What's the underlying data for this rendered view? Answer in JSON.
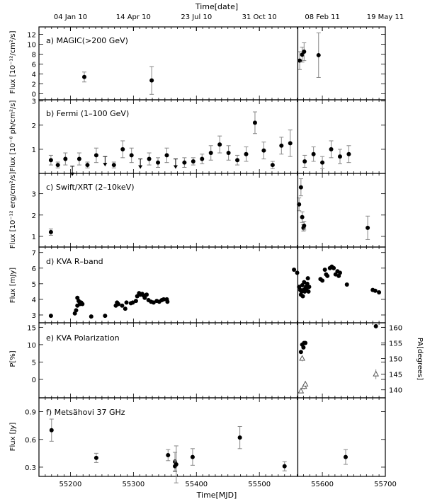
{
  "chart_data": {
    "type": "scatter",
    "x_axis_bottom": {
      "label": "Time[MJD]",
      "range": [
        55150,
        55700
      ],
      "ticks": [
        55200,
        55300,
        55400,
        55500,
        55600,
        55700
      ]
    },
    "x_axis_top": {
      "label": "Time[date]",
      "ticks": [
        {
          "mjd": 55200,
          "label": "04 Jan 10"
        },
        {
          "mjd": 55300,
          "label": "14 Apr 10"
        },
        {
          "mjd": 55400,
          "label": "23 Jul 10"
        },
        {
          "mjd": 55500,
          "label": "31 Oct 10"
        },
        {
          "mjd": 55600,
          "label": "08 Feb 11"
        },
        {
          "mjd": 55700,
          "label": "19 May 11"
        }
      ]
    },
    "vertical_line_mjd": 55561,
    "panels": [
      {
        "title": "a) MAGIC(>200 GeV)",
        "ylabel": "Flux [10⁻¹²/cm²/s]",
        "ylim": [
          -1.2,
          13.5
        ],
        "yticks": [
          "0",
          "2",
          "4",
          "6",
          "8",
          "10",
          "12"
        ],
        "ytick_values": [
          0,
          2,
          4,
          6,
          8,
          10,
          12
        ],
        "points": [
          [
            55222,
            3.4,
            1.0
          ],
          [
            55329,
            2.7,
            2.8
          ],
          [
            55564,
            6.7,
            1.8
          ],
          [
            55568,
            7.9,
            1.5
          ],
          [
            55571,
            8.5,
            1.8
          ],
          [
            55594,
            7.8,
            4.5
          ]
        ],
        "upper_limits": []
      },
      {
        "title": "b) Fermi (1–100 GeV)",
        "ylabel": "Flux [10⁻⁸ ph/cm²/s]",
        "ylim": [
          0.0,
          3.05
        ],
        "yticks": [
          "1",
          "2",
          "3"
        ],
        "ytick_values": [
          1,
          2,
          3
        ],
        "points": [
          [
            55169,
            0.55,
            0.2
          ],
          [
            55180,
            0.35,
            0.12
          ],
          [
            55192,
            0.6,
            0.25
          ],
          [
            55214,
            0.6,
            0.25
          ],
          [
            55227,
            0.35,
            0.12
          ],
          [
            55241,
            0.75,
            0.3
          ],
          [
            55269,
            0.35,
            0.12
          ],
          [
            55283,
            1.0,
            0.35
          ],
          [
            55297,
            0.75,
            0.3
          ],
          [
            55325,
            0.6,
            0.25
          ],
          [
            55339,
            0.45,
            0.2
          ],
          [
            55353,
            0.75,
            0.3
          ],
          [
            55381,
            0.45,
            0.2
          ],
          [
            55395,
            0.5,
            0.15
          ],
          [
            55409,
            0.6,
            0.2
          ],
          [
            55423,
            0.85,
            0.3
          ],
          [
            55437,
            1.2,
            0.35
          ],
          [
            55451,
            0.85,
            0.3
          ],
          [
            55465,
            0.55,
            0.2
          ],
          [
            55479,
            0.8,
            0.3
          ],
          [
            55493,
            2.1,
            0.45
          ],
          [
            55507,
            0.95,
            0.35
          ],
          [
            55521,
            0.35,
            0.15
          ],
          [
            55535,
            1.15,
            0.35
          ],
          [
            55549,
            1.25,
            0.55
          ],
          [
            55572,
            0.5,
            0.25
          ],
          [
            55586,
            0.8,
            0.3
          ],
          [
            55600,
            0.45,
            0.25
          ],
          [
            55614,
            1.0,
            0.35
          ],
          [
            55628,
            0.7,
            0.3
          ],
          [
            55642,
            0.8,
            0.35
          ]
        ],
        "upper_limits": [
          [
            55203,
            0.3
          ],
          [
            55255,
            0.7
          ],
          [
            55311,
            0.6
          ],
          [
            55367,
            0.6
          ]
        ]
      },
      {
        "title": "c) Swift/XRT (2–10keV)",
        "ylabel": "Flux [10⁻¹² erg/cm²/s]",
        "ylim": [
          0.5,
          3.95
        ],
        "yticks": [
          "1",
          "2",
          "3"
        ],
        "ytick_values": [
          1,
          2,
          3
        ],
        "points": [
          [
            55169,
            1.2,
            0.15
          ],
          [
            55563,
            2.5,
            0.3
          ],
          [
            55566,
            3.3,
            0.4
          ],
          [
            55568,
            1.9,
            0.25
          ],
          [
            55570,
            1.4,
            0.15
          ],
          [
            55571,
            1.5,
            0.2
          ],
          [
            55672,
            1.4,
            0.55
          ]
        ],
        "upper_limits": []
      },
      {
        "title": "d) KVA R–band",
        "ylabel": "Flux [mJy]",
        "ylim": [
          2.5,
          7.35
        ],
        "yticks": [
          "3",
          "4",
          "5",
          "6",
          "7"
        ],
        "ytick_values": [
          3,
          4,
          5,
          6,
          7
        ],
        "points": [
          [
            55169,
            2.95,
            0
          ],
          [
            55207,
            3.1,
            0
          ],
          [
            55209,
            3.3,
            0
          ],
          [
            55211,
            3.6,
            0
          ],
          [
            55213,
            3.9,
            0
          ],
          [
            55215,
            3.7,
            0
          ],
          [
            55217,
            3.8,
            0
          ],
          [
            55219,
            3.7,
            0
          ],
          [
            55211,
            4.1,
            0
          ],
          [
            55233,
            2.9,
            0
          ],
          [
            55255,
            2.95,
            0
          ],
          [
            55272,
            3.6,
            0
          ],
          [
            55274,
            3.8,
            0
          ],
          [
            55276,
            3.7,
            0
          ],
          [
            55282,
            3.6,
            0
          ],
          [
            55287,
            3.4,
            0
          ],
          [
            55289,
            3.8,
            0
          ],
          [
            55296,
            3.75,
            0
          ],
          [
            55299,
            3.8,
            0
          ],
          [
            55304,
            3.9,
            0
          ],
          [
            55306,
            4.2,
            0
          ],
          [
            55309,
            4.4,
            0
          ],
          [
            55311,
            4.3,
            0
          ],
          [
            55314,
            4.35,
            0
          ],
          [
            55316,
            4.25,
            0
          ],
          [
            55318,
            4.1,
            0
          ],
          [
            55321,
            4.3,
            0
          ],
          [
            55324,
            3.95,
            0
          ],
          [
            55328,
            3.85,
            0
          ],
          [
            55332,
            3.8,
            0
          ],
          [
            55337,
            3.9,
            0
          ],
          [
            55341,
            3.85,
            0
          ],
          [
            55345,
            3.95,
            0
          ],
          [
            55348,
            4.0,
            0
          ],
          [
            55353,
            4.0,
            0
          ],
          [
            55354,
            3.85,
            0
          ],
          [
            55555,
            5.9,
            0
          ],
          [
            55560,
            5.7,
            0
          ],
          [
            55563,
            4.8,
            0
          ],
          [
            55565,
            4.6,
            0
          ],
          [
            55566,
            4.3,
            0
          ],
          [
            55567,
            4.5,
            0
          ],
          [
            55568,
            4.9,
            0
          ],
          [
            55569,
            4.2,
            0
          ],
          [
            55570,
            4.6,
            0
          ],
          [
            55571,
            5.1,
            0
          ],
          [
            55572,
            4.5,
            0
          ],
          [
            55573,
            4.7,
            0
          ],
          [
            55574,
            4.8,
            0
          ],
          [
            55575,
            4.6,
            0
          ],
          [
            55576,
            5.0,
            0
          ],
          [
            55577,
            5.35,
            0
          ],
          [
            55578,
            4.5,
            0
          ],
          [
            55579,
            4.8,
            0
          ],
          [
            55597,
            5.3,
            0
          ],
          [
            55600,
            5.2,
            0
          ],
          [
            55604,
            5.9,
            0
          ],
          [
            55606,
            5.6,
            0
          ],
          [
            55608,
            5.5,
            0
          ],
          [
            55612,
            6.0,
            0
          ],
          [
            55615,
            6.1,
            0
          ],
          [
            55618,
            6.0,
            0
          ],
          [
            55621,
            5.6,
            0
          ],
          [
            55624,
            5.8,
            0
          ],
          [
            55626,
            5.5,
            0
          ],
          [
            55628,
            5.7,
            0
          ],
          [
            55639,
            4.95,
            0
          ],
          [
            55680,
            4.6,
            0
          ],
          [
            55684,
            4.55,
            0
          ],
          [
            55690,
            4.45,
            0
          ]
        ],
        "upper_limits": []
      },
      {
        "title": "e) KVA Polarization",
        "ylabel": "P[%]",
        "ylabel_right": "PA[degrees]",
        "ylim": [
          -5.3,
          16.3
        ],
        "yticks": [
          "0",
          "5",
          "10",
          "15"
        ],
        "ytick_values": [
          0,
          5,
          10,
          15
        ],
        "right_ticks": [
          "140",
          "145",
          "150",
          "155",
          "160"
        ],
        "right_tick_positions_P": [
          -3.0,
          1.5,
          6.0,
          10.5,
          15.0
        ],
        "points": [
          [
            55566,
            7.9,
            0
          ],
          [
            55568,
            10.0,
            0
          ],
          [
            55570,
            9.2,
            0
          ],
          [
            55571,
            10.5,
            0
          ],
          [
            55573,
            10.5,
            0
          ],
          [
            55685,
            15.3,
            0
          ]
        ],
        "triangles": [
          [
            55566,
            -3.4,
            0.4
          ],
          [
            55568,
            6.0,
            0.8
          ],
          [
            55571,
            -2.1,
            0.8
          ],
          [
            55573,
            -1.4,
            0.8
          ],
          [
            55685,
            1.5,
            1.4
          ]
        ],
        "upper_limits": []
      },
      {
        "title": "f) Metsähovi 37 GHz",
        "ylabel": "Flux [Jy]",
        "ylim": [
          0.2,
          1.05
        ],
        "yticks": [
          "0.3",
          "0.6",
          "0.9"
        ],
        "ytick_values": [
          0.3,
          0.6,
          0.9
        ],
        "points": [
          [
            55170,
            0.7,
            0.12
          ],
          [
            55241,
            0.4,
            0.05
          ],
          [
            55355,
            0.43,
            0.06
          ],
          [
            55366,
            0.36,
            0.1
          ],
          [
            55366,
            0.31,
            0.06
          ],
          [
            55368,
            0.33,
            0.2
          ],
          [
            55394,
            0.41,
            0.09
          ],
          [
            55469,
            0.62,
            0.12
          ],
          [
            55540,
            0.31,
            0.05
          ],
          [
            55637,
            0.41,
            0.08
          ]
        ],
        "upper_limits": []
      }
    ]
  }
}
